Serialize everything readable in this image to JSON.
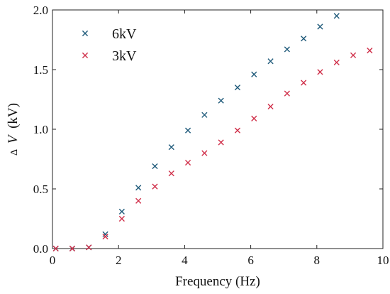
{
  "chart_data": {
    "type": "scatter",
    "xlabel": "Frequency (Hz)",
    "ylabel_prefix": "Δ",
    "ylabel_var": "V",
    "ylabel_unit": "(kV)",
    "xlim": [
      0,
      10
    ],
    "ylim": [
      0,
      2.0
    ],
    "xticks": [
      0,
      2,
      4,
      6,
      8,
      10
    ],
    "xtick_labels": [
      "0",
      "2",
      "4",
      "6",
      "8",
      "10"
    ],
    "yticks": [
      0,
      0.5,
      1.0,
      1.5,
      2.0
    ],
    "ytick_labels": [
      "0.0",
      "0.5",
      "1.0",
      "1.5",
      "2.0"
    ],
    "grid": false,
    "legend_position": "top-left",
    "marker": "x",
    "series": [
      {
        "name": "6kV",
        "color": "#1f5a7a",
        "x": [
          0.1,
          0.6,
          1.1,
          1.6,
          2.1,
          2.6,
          3.1,
          3.6,
          4.1,
          4.6,
          5.1,
          5.6,
          6.1,
          6.6,
          7.1,
          7.6,
          8.1,
          8.6
        ],
        "y": [
          0.0,
          0.0,
          0.01,
          0.12,
          0.31,
          0.51,
          0.69,
          0.85,
          0.99,
          1.12,
          1.24,
          1.35,
          1.46,
          1.57,
          1.67,
          1.76,
          1.86,
          1.95
        ]
      },
      {
        "name": "3kV",
        "color": "#d0304a",
        "x": [
          0.1,
          0.6,
          1.1,
          1.6,
          2.1,
          2.6,
          3.1,
          3.6,
          4.1,
          4.6,
          5.1,
          5.6,
          6.1,
          6.6,
          7.1,
          7.6,
          8.1,
          8.6,
          9.1,
          9.6
        ],
        "y": [
          0.0,
          0.0,
          0.01,
          0.1,
          0.25,
          0.4,
          0.52,
          0.63,
          0.72,
          0.8,
          0.89,
          0.99,
          1.09,
          1.19,
          1.3,
          1.39,
          1.48,
          1.56,
          1.62,
          1.66
        ]
      }
    ]
  }
}
